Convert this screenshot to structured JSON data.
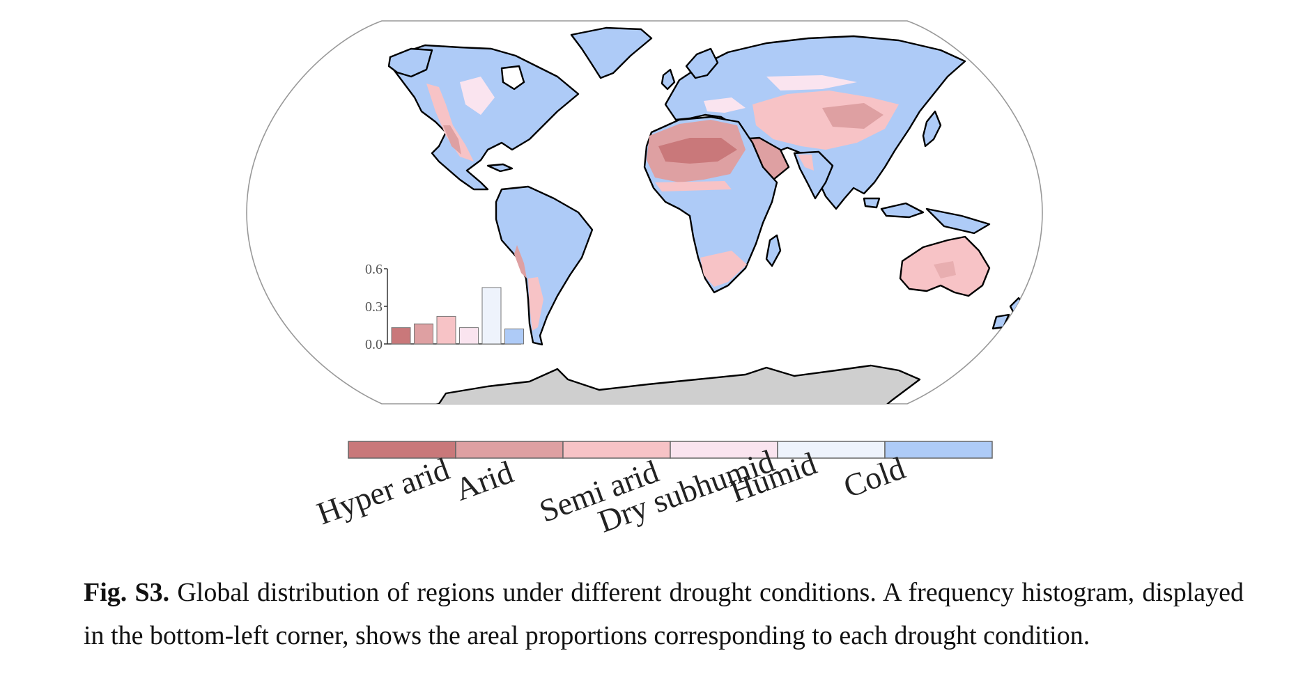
{
  "map": {
    "antarctica_color": "#cfcfcf",
    "coast_color": "#000000",
    "outline_color": "#999999"
  },
  "classes": [
    {
      "label": "Hyper arid",
      "color": "#c9787a"
    },
    {
      "label": "Arid",
      "color": "#dea0a2"
    },
    {
      "label": "Semi arid",
      "color": "#f7c3c6"
    },
    {
      "label": "Dry subhumid",
      "color": "#fae4ef"
    },
    {
      "label": "Humid",
      "color": "#eef3fc"
    },
    {
      "label": "Cold",
      "color": "#aecbf7"
    }
  ],
  "chart_data": {
    "type": "bar",
    "categories": [
      "Hyper arid",
      "Arid",
      "Semi arid",
      "Dry subhumid",
      "Humid",
      "Cold"
    ],
    "values": [
      0.13,
      0.16,
      0.22,
      0.13,
      0.45,
      0.12
    ],
    "yticks": [
      "0.0",
      "0.3",
      "0.6"
    ],
    "ylim": [
      0,
      0.6
    ],
    "title": "",
    "xlabel": "",
    "ylabel": ""
  },
  "caption": {
    "lead": "Fig. S3.",
    "text": " Global distribution of regions under different drought conditions. A frequency histogram, displayed in the bottom-left corner, shows the areal proportions corresponding to each drought condition."
  }
}
